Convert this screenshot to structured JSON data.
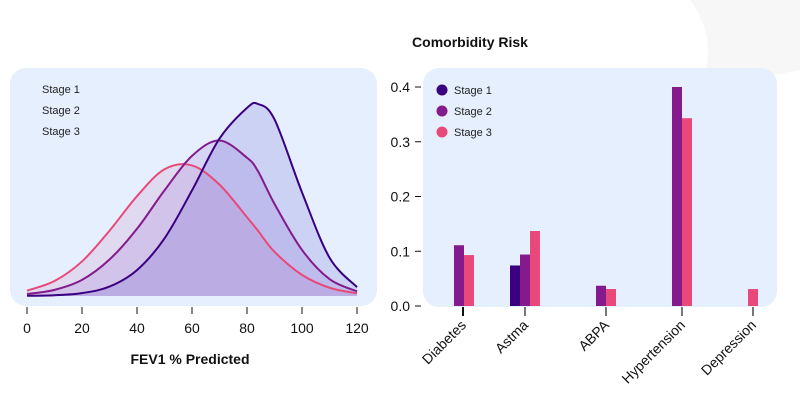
{
  "colors": {
    "stage1": "#3a0080",
    "stage2": "#841a8c",
    "stage3": "#e8497a",
    "panel": "#e5effd"
  },
  "chart_data": [
    {
      "type": "area",
      "xlabel": "FEV1 % Predicted",
      "ylabel": "",
      "xlim": [
        0,
        120
      ],
      "xticks": [
        "0",
        "20",
        "40",
        "60",
        "80",
        "100",
        "120"
      ],
      "legend": [
        "Stage 1",
        "Stage 2",
        "Stage 3"
      ],
      "legend_position": "top-left",
      "x": [
        0,
        10,
        20,
        30,
        40,
        50,
        60,
        70,
        80,
        84,
        90,
        100,
        110,
        120
      ],
      "series": [
        {
          "name": "Stage 1",
          "values": [
            0.001,
            0.004,
            0.015,
            0.049,
            0.135,
            0.3,
            0.55,
            0.82,
            0.98,
            1.0,
            0.92,
            0.54,
            0.2,
            0.046
          ]
        },
        {
          "name": "Stage 2",
          "values": [
            0.01,
            0.032,
            0.084,
            0.19,
            0.35,
            0.55,
            0.73,
            0.81,
            0.72,
            0.65,
            0.48,
            0.24,
            0.088,
            0.024
          ]
        },
        {
          "name": "Stage 3",
          "values": [
            0.028,
            0.078,
            0.18,
            0.34,
            0.52,
            0.66,
            0.68,
            0.58,
            0.41,
            0.34,
            0.23,
            0.11,
            0.043,
            0.014
          ]
        }
      ]
    },
    {
      "type": "bar",
      "title": "Comorbidity Risk",
      "categories": [
        "Diabetes",
        "Astma",
        "ABPA",
        "Hypertension",
        "Depression"
      ],
      "ylim": [
        0,
        0.4
      ],
      "yticks": [
        "0.0",
        "0.1",
        "0.2",
        "0.3",
        "0.4"
      ],
      "legend_position": "top-left",
      "series": [
        {
          "name": "Stage 1",
          "values": [
            null,
            0.074,
            null,
            null,
            null
          ]
        },
        {
          "name": "Stage 2",
          "values": [
            0.111,
            0.094,
            0.037,
            0.4,
            null
          ]
        },
        {
          "name": "Stage 3",
          "values": [
            0.093,
            0.137,
            0.031,
            0.343,
            0.031
          ]
        }
      ]
    }
  ]
}
